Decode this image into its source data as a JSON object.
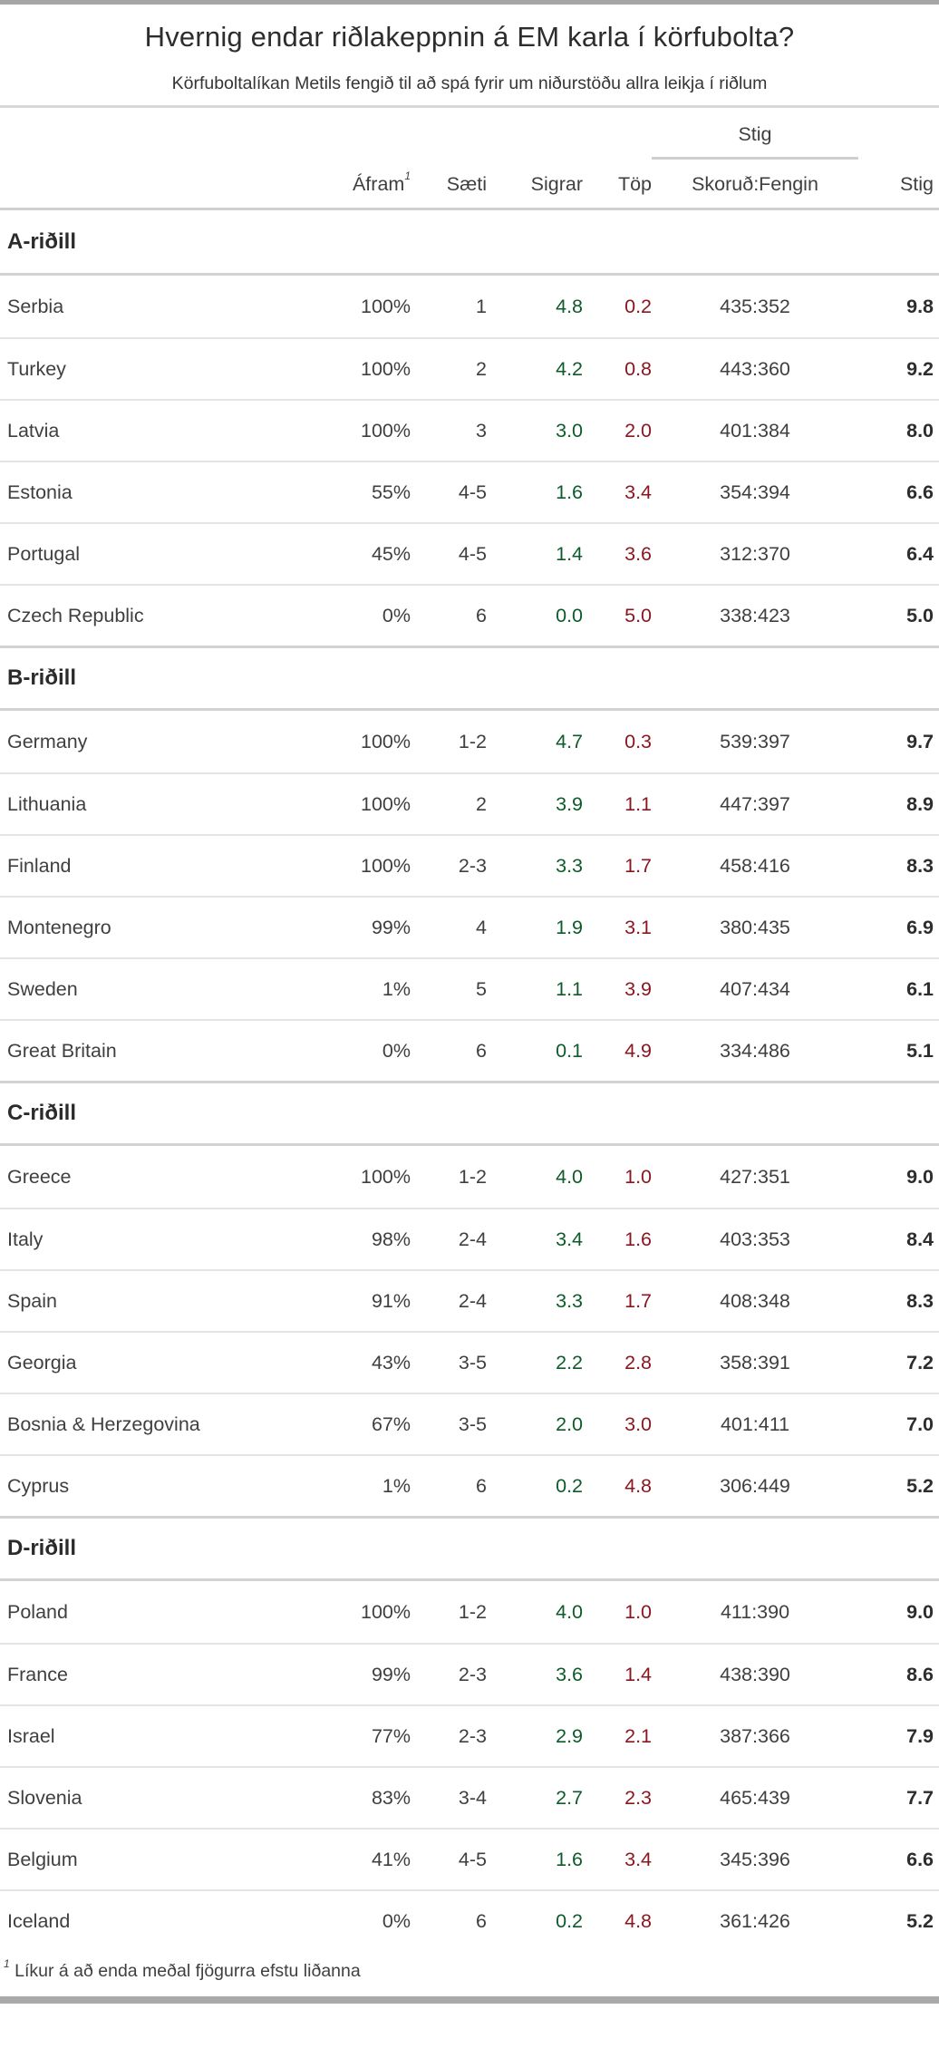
{
  "chart_data": {
    "type": "table",
    "title": "Hvernig endar riðlakeppnin á EM karla í körfubolta?",
    "subtitle": "Körfuboltalíkan Metils fengið til að spá fyrir um niðurstöðu allra leikja í riðlum",
    "column_group_label": "Stig",
    "columns": {
      "team": "",
      "afram": "Áfram",
      "afram_superscript": "1",
      "saeti": "Sæti",
      "sigrar": "Sigrar",
      "top": "Töp",
      "skorud_fengin": "Skoruð:Fengin",
      "stig": "Stig"
    },
    "colors": {
      "wins": "#0d5b2a",
      "losses": "#8b1620"
    },
    "groups": [
      {
        "name": "A-riðill",
        "rows": [
          {
            "team": "Serbia",
            "afram": "100%",
            "saeti": "1",
            "sigrar": "4.8",
            "top": "0.2",
            "skorud_fengin": "435:352",
            "stig": "9.8"
          },
          {
            "team": "Turkey",
            "afram": "100%",
            "saeti": "2",
            "sigrar": "4.2",
            "top": "0.8",
            "skorud_fengin": "443:360",
            "stig": "9.2"
          },
          {
            "team": "Latvia",
            "afram": "100%",
            "saeti": "3",
            "sigrar": "3.0",
            "top": "2.0",
            "skorud_fengin": "401:384",
            "stig": "8.0"
          },
          {
            "team": "Estonia",
            "afram": "55%",
            "saeti": "4-5",
            "sigrar": "1.6",
            "top": "3.4",
            "skorud_fengin": "354:394",
            "stig": "6.6"
          },
          {
            "team": "Portugal",
            "afram": "45%",
            "saeti": "4-5",
            "sigrar": "1.4",
            "top": "3.6",
            "skorud_fengin": "312:370",
            "stig": "6.4"
          },
          {
            "team": "Czech Republic",
            "afram": "0%",
            "saeti": "6",
            "sigrar": "0.0",
            "top": "5.0",
            "skorud_fengin": "338:423",
            "stig": "5.0"
          }
        ]
      },
      {
        "name": "B-riðill",
        "rows": [
          {
            "team": "Germany",
            "afram": "100%",
            "saeti": "1-2",
            "sigrar": "4.7",
            "top": "0.3",
            "skorud_fengin": "539:397",
            "stig": "9.7"
          },
          {
            "team": "Lithuania",
            "afram": "100%",
            "saeti": "2",
            "sigrar": "3.9",
            "top": "1.1",
            "skorud_fengin": "447:397",
            "stig": "8.9"
          },
          {
            "team": "Finland",
            "afram": "100%",
            "saeti": "2-3",
            "sigrar": "3.3",
            "top": "1.7",
            "skorud_fengin": "458:416",
            "stig": "8.3"
          },
          {
            "team": "Montenegro",
            "afram": "99%",
            "saeti": "4",
            "sigrar": "1.9",
            "top": "3.1",
            "skorud_fengin": "380:435",
            "stig": "6.9"
          },
          {
            "team": "Sweden",
            "afram": "1%",
            "saeti": "5",
            "sigrar": "1.1",
            "top": "3.9",
            "skorud_fengin": "407:434",
            "stig": "6.1"
          },
          {
            "team": "Great Britain",
            "afram": "0%",
            "saeti": "6",
            "sigrar": "0.1",
            "top": "4.9",
            "skorud_fengin": "334:486",
            "stig": "5.1"
          }
        ]
      },
      {
        "name": "C-riðill",
        "rows": [
          {
            "team": "Greece",
            "afram": "100%",
            "saeti": "1-2",
            "sigrar": "4.0",
            "top": "1.0",
            "skorud_fengin": "427:351",
            "stig": "9.0"
          },
          {
            "team": "Italy",
            "afram": "98%",
            "saeti": "2-4",
            "sigrar": "3.4",
            "top": "1.6",
            "skorud_fengin": "403:353",
            "stig": "8.4"
          },
          {
            "team": "Spain",
            "afram": "91%",
            "saeti": "2-4",
            "sigrar": "3.3",
            "top": "1.7",
            "skorud_fengin": "408:348",
            "stig": "8.3"
          },
          {
            "team": "Georgia",
            "afram": "43%",
            "saeti": "3-5",
            "sigrar": "2.2",
            "top": "2.8",
            "skorud_fengin": "358:391",
            "stig": "7.2"
          },
          {
            "team": "Bosnia & Herzegovina",
            "afram": "67%",
            "saeti": "3-5",
            "sigrar": "2.0",
            "top": "3.0",
            "skorud_fengin": "401:411",
            "stig": "7.0"
          },
          {
            "team": "Cyprus",
            "afram": "1%",
            "saeti": "6",
            "sigrar": "0.2",
            "top": "4.8",
            "skorud_fengin": "306:449",
            "stig": "5.2"
          }
        ]
      },
      {
        "name": "D-riðill",
        "rows": [
          {
            "team": "Poland",
            "afram": "100%",
            "saeti": "1-2",
            "sigrar": "4.0",
            "top": "1.0",
            "skorud_fengin": "411:390",
            "stig": "9.0"
          },
          {
            "team": "France",
            "afram": "99%",
            "saeti": "2-3",
            "sigrar": "3.6",
            "top": "1.4",
            "skorud_fengin": "438:390",
            "stig": "8.6"
          },
          {
            "team": "Israel",
            "afram": "77%",
            "saeti": "2-3",
            "sigrar": "2.9",
            "top": "2.1",
            "skorud_fengin": "387:366",
            "stig": "7.9"
          },
          {
            "team": "Slovenia",
            "afram": "83%",
            "saeti": "3-4",
            "sigrar": "2.7",
            "top": "2.3",
            "skorud_fengin": "465:439",
            "stig": "7.7"
          },
          {
            "team": "Belgium",
            "afram": "41%",
            "saeti": "4-5",
            "sigrar": "1.6",
            "top": "3.4",
            "skorud_fengin": "345:396",
            "stig": "6.6"
          },
          {
            "team": "Iceland",
            "afram": "0%",
            "saeti": "6",
            "sigrar": "0.2",
            "top": "4.8",
            "skorud_fengin": "361:426",
            "stig": "5.2"
          }
        ]
      }
    ],
    "footnote_marker": "1",
    "footnote": "Líkur á að enda meðal fjögurra efstu liðanna"
  }
}
